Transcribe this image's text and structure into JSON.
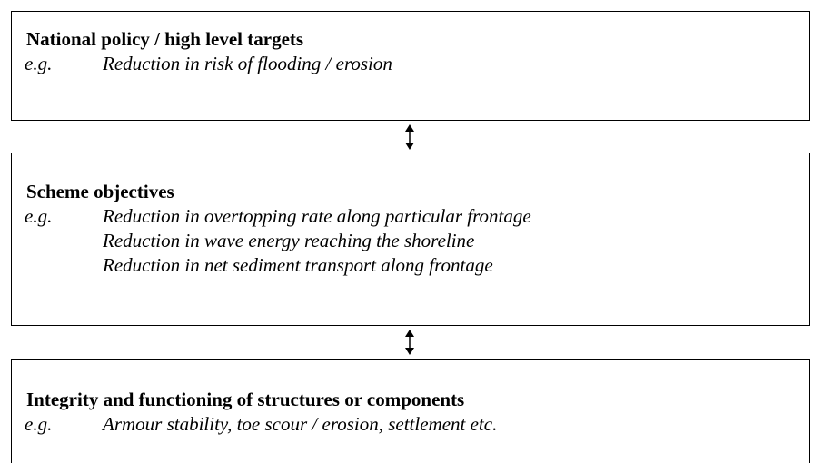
{
  "boxes": [
    {
      "title": "National policy / high level targets",
      "prefix": "e.g.",
      "items": [
        "Reduction in risk of flooding / erosion"
      ]
    },
    {
      "title": "Scheme objectives",
      "prefix": "e.g.",
      "items": [
        "Reduction in overtopping rate along particular frontage",
        "Reduction in wave energy reaching the shoreline",
        "Reduction in net sediment transport along frontage"
      ]
    },
    {
      "title": "Integrity and functioning of structures or components",
      "prefix": "e.g.",
      "items": [
        "Armour stability, toe scour / erosion, settlement etc."
      ]
    }
  ]
}
